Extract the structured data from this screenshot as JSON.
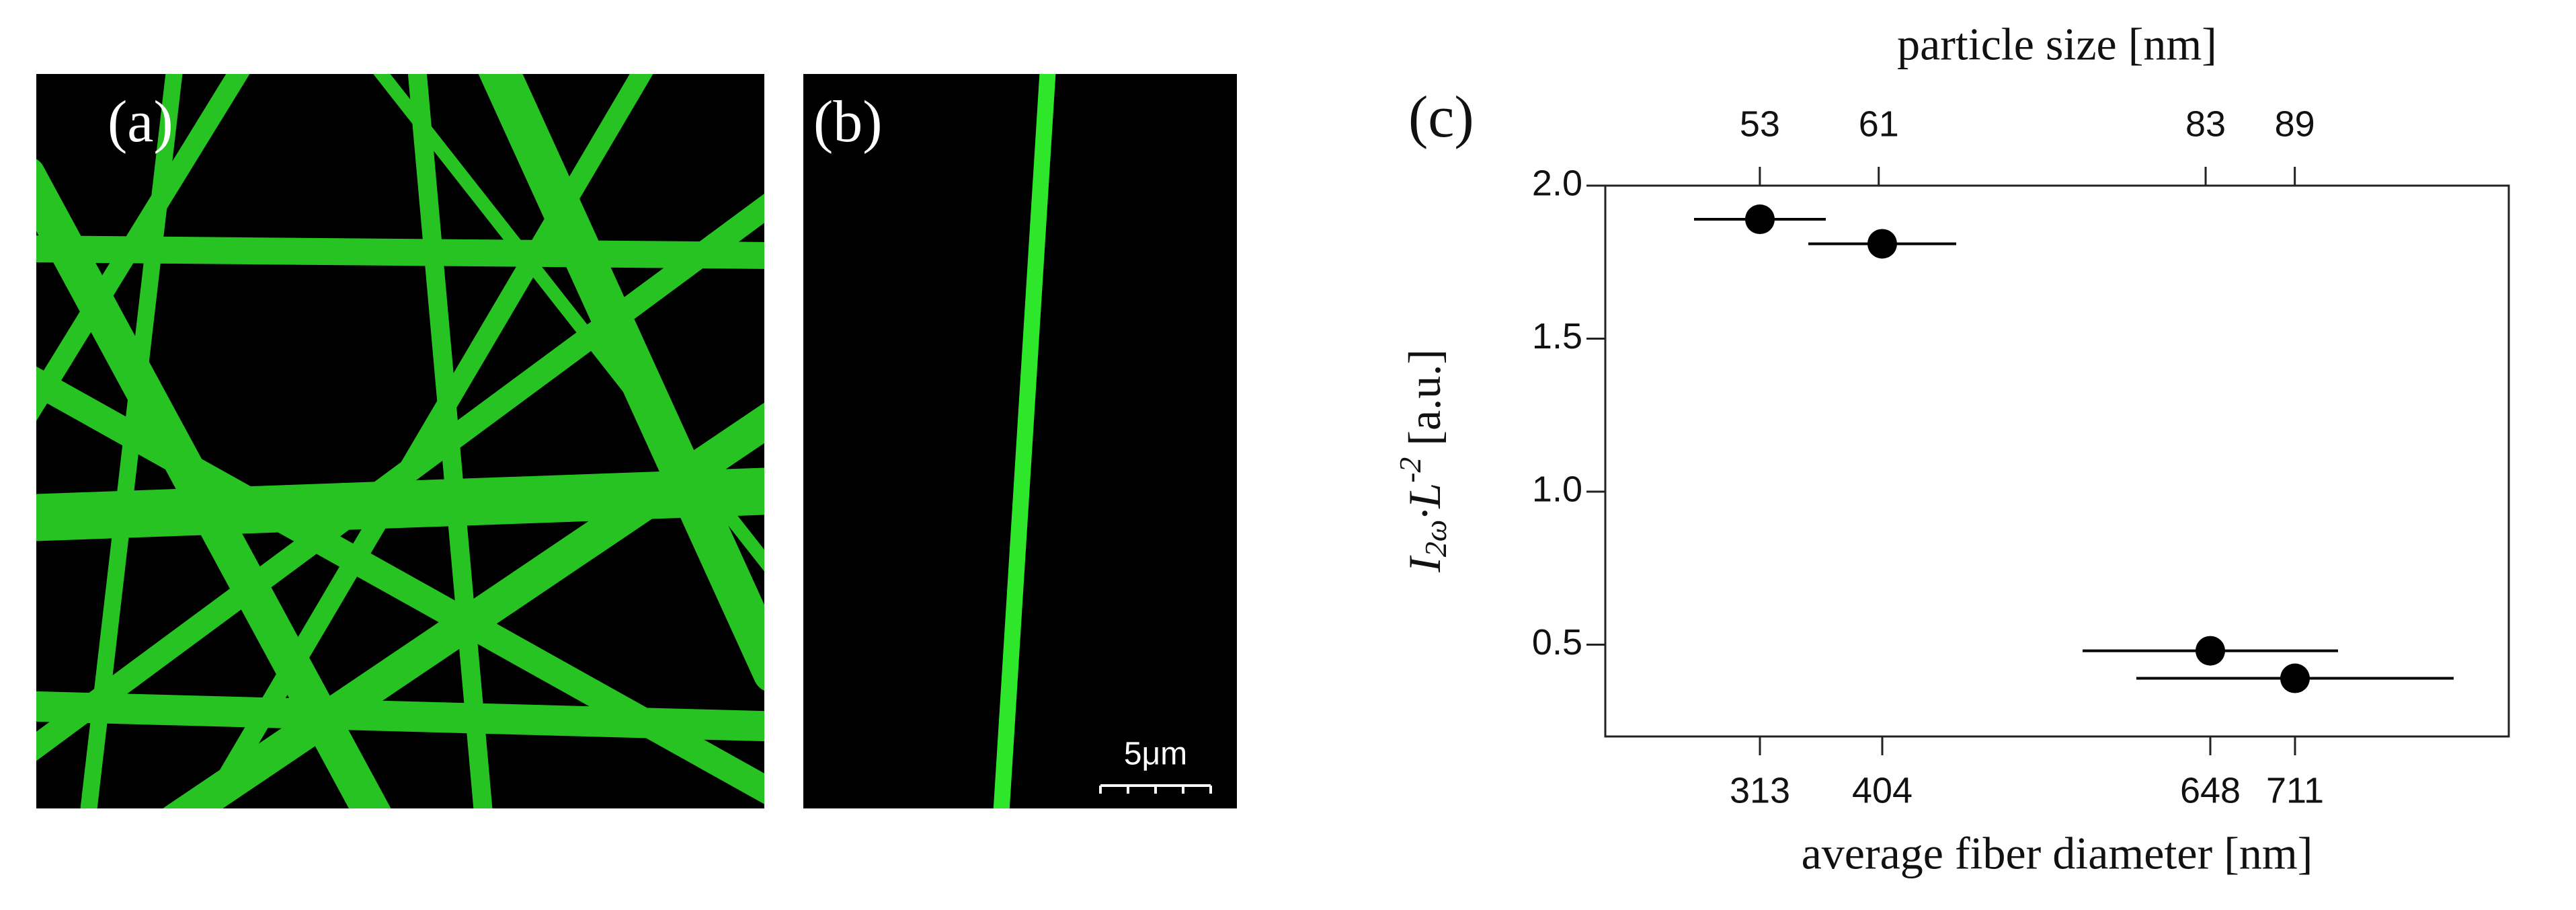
{
  "panels": {
    "a": {
      "label": "(a)"
    },
    "b": {
      "label": "(b)",
      "scale_bar": "5μm"
    }
  },
  "chart_data": {
    "type": "scatter",
    "label": "(c)",
    "xlabel": "average fiber diameter [nm]",
    "x2label": "particle size [nm]",
    "ylabel": [
      "I",
      "2ω",
      "·L",
      "-2",
      " [a.u.]"
    ],
    "xlim": [
      198,
      870
    ],
    "xticks": [
      313,
      404,
      648,
      711
    ],
    "x2lim": [
      42.6,
      103.4
    ],
    "x2ticks": [
      53,
      61,
      83,
      89
    ],
    "ylim": [
      0.2,
      2.0
    ],
    "yticks": [
      {
        "value": 0.5,
        "label": "0.5"
      },
      {
        "value": 1.0,
        "label": "1.0"
      },
      {
        "value": 1.5,
        "label": "1.5"
      },
      {
        "value": 2.0,
        "label": "2.0"
      }
    ],
    "series": [
      {
        "color": "#000000",
        "x": [
          313,
          404,
          648,
          711
        ],
        "values": [
          1.89,
          1.81,
          0.48,
          0.39
        ],
        "xerr": [
          49,
          55,
          95,
          118
        ]
      }
    ]
  }
}
